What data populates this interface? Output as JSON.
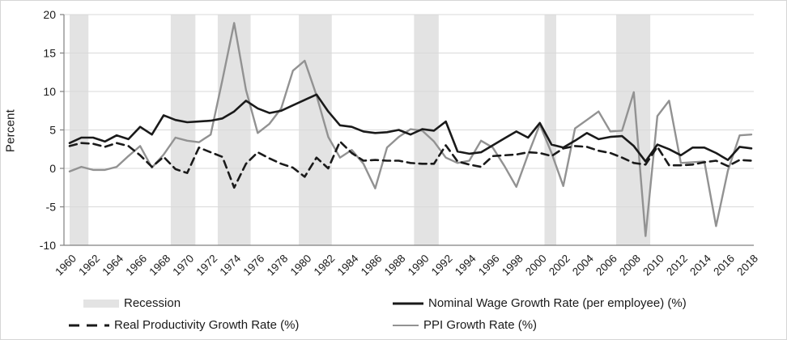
{
  "figure": {
    "ylabel": "Percent"
  },
  "legend": {
    "recession_label": "Recession",
    "nominal_label": "Nominal Wage Growth Rate (per employee) (%)",
    "productivity_label": "Real Productivity Growth Rate (%)",
    "ppi_label": "PPI Growth Rate (%)"
  },
  "colors": {
    "nominal_line": "#1a1a1a",
    "productivity_line": "#1a1a1a",
    "ppi_line": "#929292",
    "recession_band": "#e3e3e3",
    "gridline": "#d9d9d9",
    "axis": "#808080",
    "text": "#1a1a1a"
  },
  "chart_data": {
    "type": "line",
    "title": "",
    "xlabel": "",
    "ylabel": "Percent",
    "ylim": [
      -10,
      20
    ],
    "yticks": [
      -10,
      -5,
      0,
      5,
      10,
      15,
      20
    ],
    "grid": "horizontal",
    "legend_position": "bottom",
    "x": [
      1960,
      1961,
      1962,
      1963,
      1964,
      1965,
      1966,
      1967,
      1968,
      1969,
      1970,
      1971,
      1972,
      1973,
      1974,
      1975,
      1976,
      1977,
      1978,
      1979,
      1980,
      1981,
      1982,
      1983,
      1984,
      1985,
      1986,
      1987,
      1988,
      1989,
      1990,
      1991,
      1992,
      1993,
      1994,
      1995,
      1996,
      1997,
      1998,
      1999,
      2000,
      2001,
      2002,
      2003,
      2004,
      2005,
      2006,
      2007,
      2008,
      2009,
      2010,
      2011,
      2012,
      2013,
      2014,
      2015,
      2016,
      2017,
      2018
    ],
    "xtick_step": 2,
    "series": [
      {
        "name": "Nominal Wage Growth Rate (per employee) (%)",
        "style": "solid-black",
        "values": [
          3.3,
          4.0,
          4.0,
          3.5,
          4.3,
          3.8,
          5.4,
          4.4,
          6.9,
          6.3,
          6.0,
          6.1,
          6.2,
          6.5,
          7.4,
          8.8,
          7.8,
          7.2,
          7.5,
          8.2,
          8.9,
          9.6,
          7.4,
          5.6,
          5.4,
          4.8,
          4.6,
          4.7,
          5.0,
          4.4,
          5.1,
          4.9,
          6.1,
          2.2,
          1.9,
          2.1,
          3.0,
          3.9,
          4.8,
          4.0,
          5.9,
          3.1,
          2.7,
          3.6,
          4.6,
          3.8,
          4.1,
          4.2,
          2.9,
          0.9,
          3.1,
          2.5,
          1.7,
          2.7,
          2.7,
          2.0,
          1.1,
          2.8,
          2.6
        ]
      },
      {
        "name": "Real Productivity Growth Rate (%)",
        "style": "dashed-black",
        "values": [
          2.9,
          3.3,
          3.2,
          2.8,
          3.3,
          2.9,
          1.7,
          0.2,
          1.5,
          -0.1,
          -0.6,
          2.7,
          2.1,
          1.5,
          -2.5,
          0.6,
          2.1,
          1.3,
          0.6,
          0.1,
          -1.1,
          1.4,
          0.0,
          3.5,
          2.0,
          1.0,
          1.1,
          1.0,
          1.0,
          0.7,
          0.6,
          0.6,
          3.0,
          0.9,
          0.5,
          0.2,
          1.6,
          1.7,
          1.8,
          2.1,
          2.0,
          1.6,
          2.6,
          2.9,
          2.8,
          2.3,
          2.0,
          1.4,
          0.7,
          0.5,
          2.8,
          0.4,
          0.4,
          0.5,
          0.8,
          1.0,
          0.3,
          1.1,
          1.0
        ]
      },
      {
        "name": "PPI Growth Rate (%)",
        "style": "solid-gray",
        "values": [
          -0.4,
          0.2,
          -0.2,
          -0.2,
          0.2,
          1.6,
          2.9,
          0.1,
          1.8,
          4.0,
          3.6,
          3.4,
          4.4,
          11.5,
          18.9,
          10.2,
          4.6,
          5.8,
          7.8,
          12.7,
          14.0,
          9.5,
          4.1,
          1.4,
          2.4,
          0.6,
          -2.6,
          2.7,
          4.1,
          5.1,
          4.9,
          3.5,
          1.4,
          0.7,
          1.0,
          3.6,
          2.7,
          0.3,
          -2.4,
          1.8,
          5.7,
          2.0,
          -2.3,
          5.2,
          6.3,
          7.4,
          4.8,
          4.9,
          9.9,
          -8.8,
          6.8,
          8.8,
          0.7,
          0.8,
          0.9,
          -7.5,
          -0.3,
          4.3,
          4.4
        ]
      }
    ],
    "recession_bands": [
      [
        1960.0,
        1961.6
      ],
      [
        1968.6,
        1970.7
      ],
      [
        1972.6,
        1975.4
      ],
      [
        1979.5,
        1982.3
      ],
      [
        1989.3,
        1991.4
      ],
      [
        2000.4,
        2001.4
      ],
      [
        2006.5,
        2009.4
      ]
    ]
  }
}
